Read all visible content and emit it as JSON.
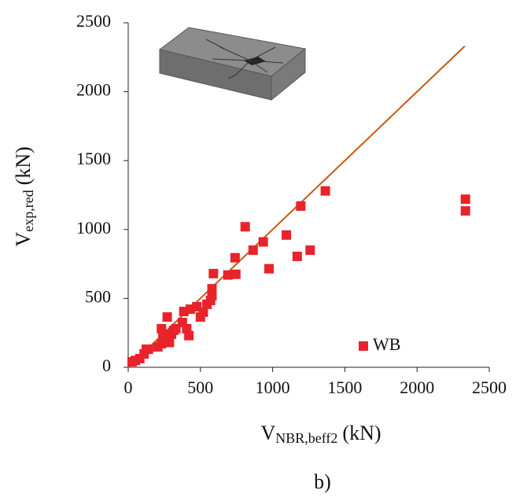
{
  "chart_data": {
    "type": "scatter",
    "y_label": {
      "main": "V",
      "sub": "exp,red",
      "unit": "(kN)"
    },
    "x_label": {
      "main": "V",
      "sub": "NBR,beff2",
      "unit": "(kN)"
    },
    "caption": "b)",
    "xlim": [
      0,
      2500
    ],
    "ylim": [
      0,
      2500
    ],
    "xticks": [
      0,
      500,
      1000,
      1500,
      2000,
      2500
    ],
    "yticks": [
      0,
      500,
      1000,
      1500,
      2000,
      2500
    ],
    "legend": "lower-right",
    "series": [
      {
        "name": "WB",
        "color": "#e8232a",
        "x": [
          27,
          50,
          80,
          110,
          125,
          140,
          205,
          230,
          240,
          230,
          270,
          265,
          300,
          315,
          330,
          375,
          405,
          385,
          430,
          475,
          500,
          520,
          545,
          570,
          580,
          580,
          590,
          690,
          740,
          745,
          810,
          865,
          935,
          975,
          1095,
          1170,
          1195,
          1260,
          1365,
          2335,
          2335,
          420,
          285
        ],
        "values": [
          40,
          50,
          63,
          97,
          131,
          131,
          148,
          171,
          211,
          280,
          365,
          240,
          240,
          268,
          280,
          325,
          280,
          405,
          422,
          440,
          365,
          400,
          457,
          485,
          520,
          570,
          680,
          670,
          795,
          675,
          1020,
          850,
          910,
          715,
          960,
          805,
          1170,
          850,
          1280,
          1220,
          1135,
          230,
          180
        ]
      }
    ],
    "reference_line": {
      "x": [
        0,
        2330
      ],
      "values": [
        0,
        2330
      ],
      "color": "#c55a11"
    }
  }
}
